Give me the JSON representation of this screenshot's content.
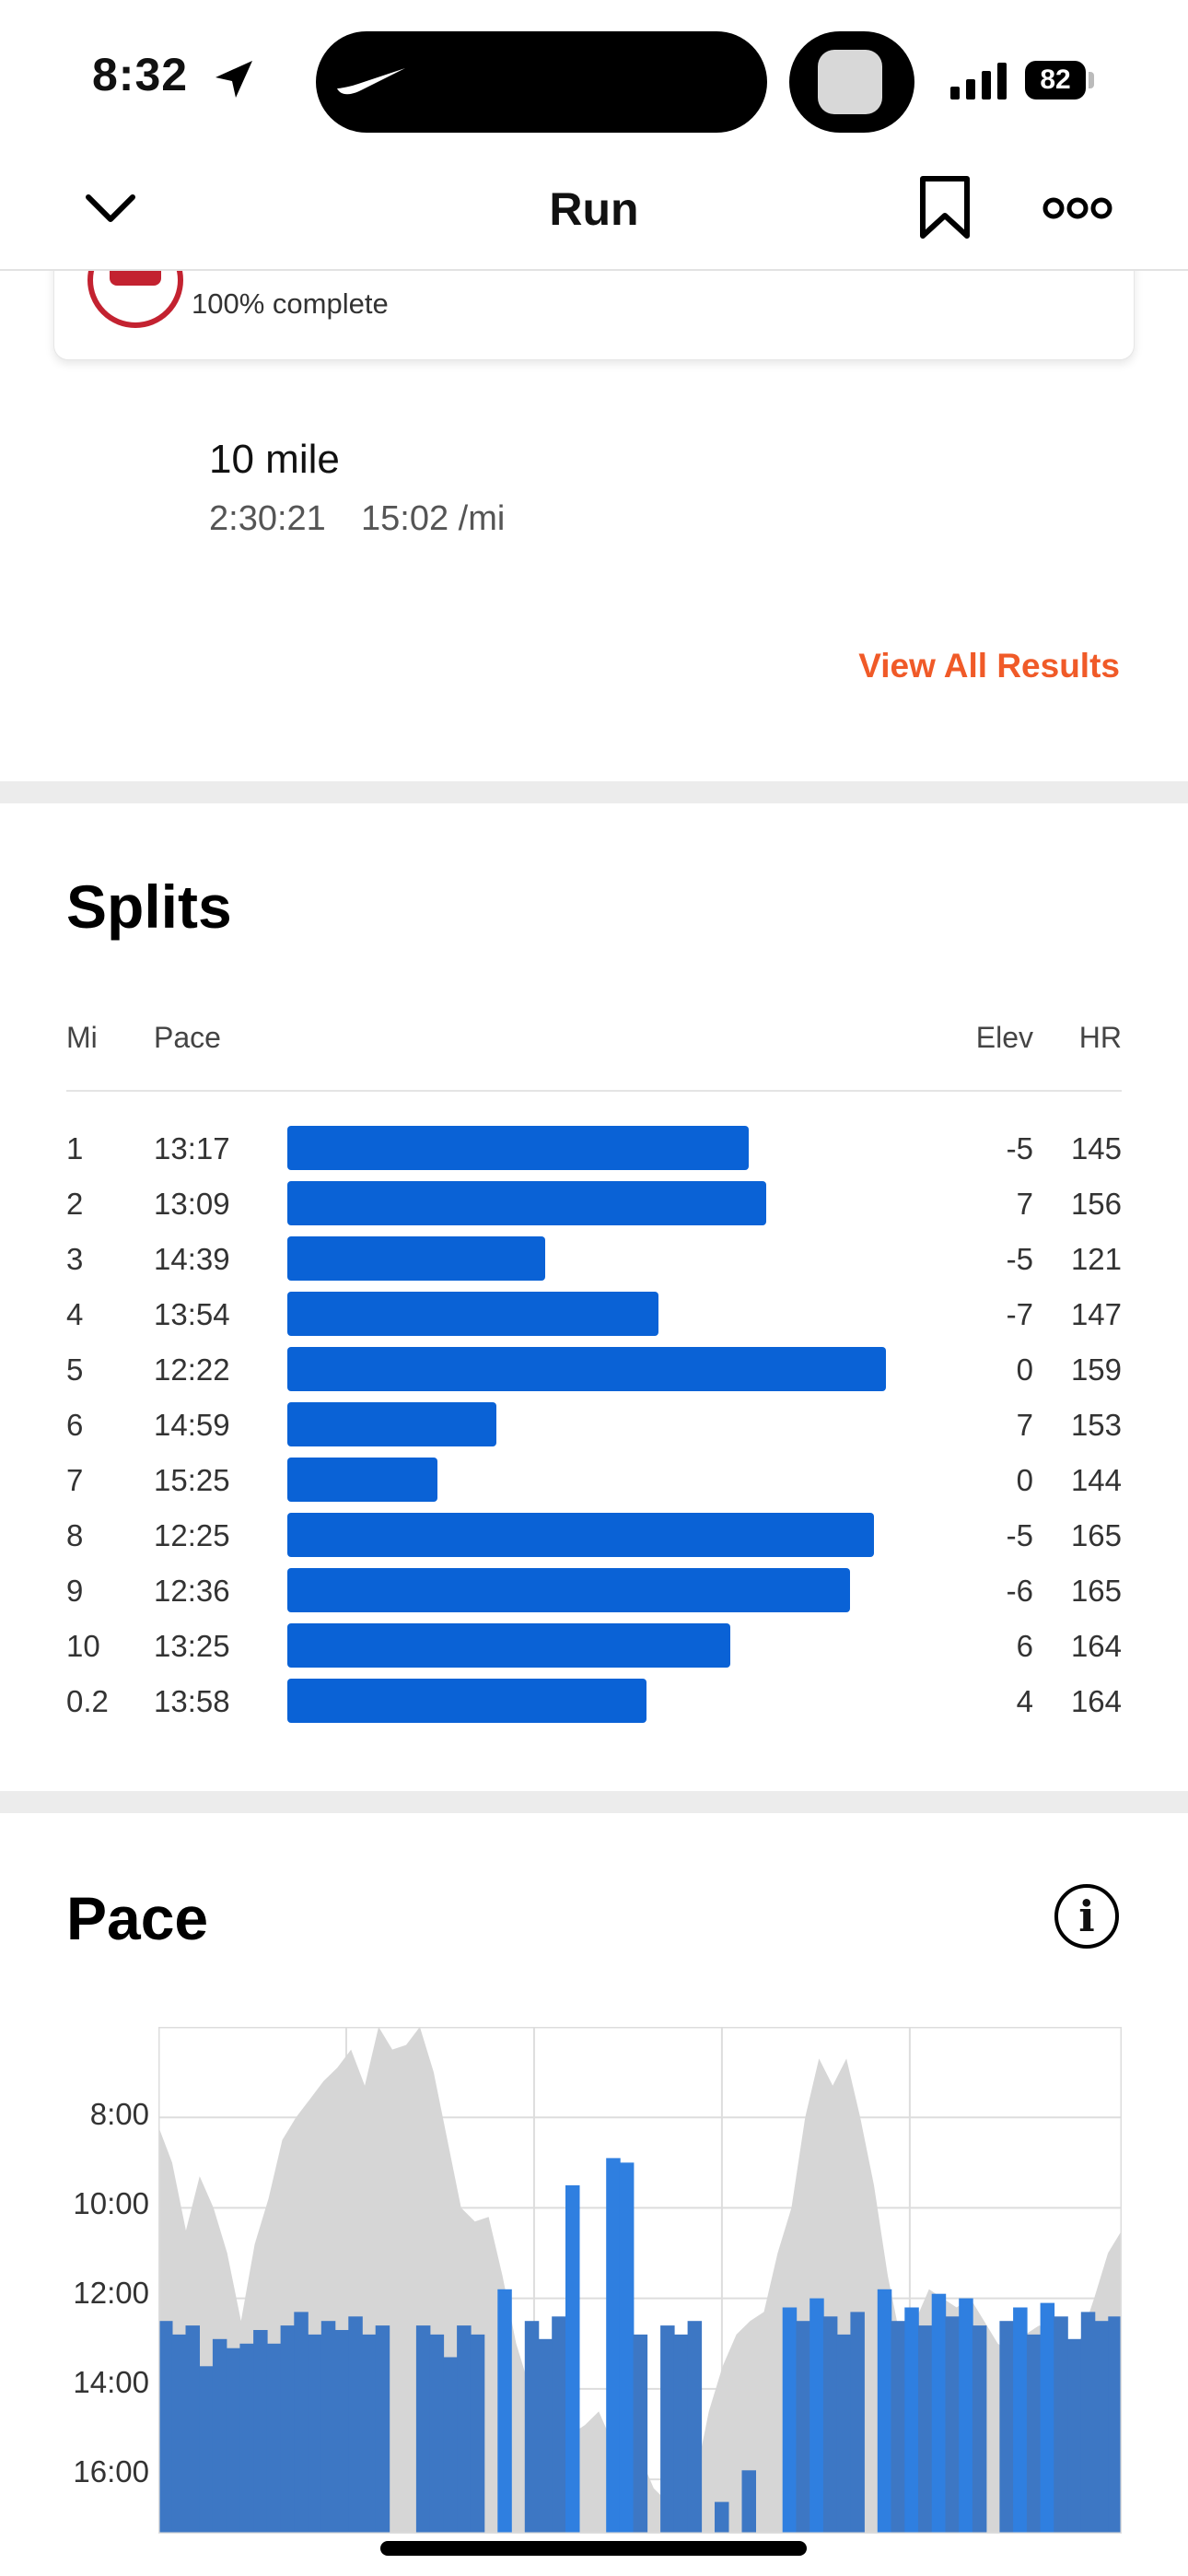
{
  "status_bar": {
    "time": "8:32",
    "battery": "82"
  },
  "nav": {
    "title": "Run"
  },
  "challenge": {
    "progress_text": "100% complete"
  },
  "result": {
    "name": "10 mile",
    "time": "2:30:21",
    "pace": "15:02 /mi"
  },
  "view_all_label": "View All Results",
  "splits": {
    "title": "Splits",
    "headers": {
      "mi": "Mi",
      "pace": "Pace",
      "elev": "Elev",
      "hr": "HR"
    },
    "rows": [
      {
        "mi": "1",
        "pace": "13:17",
        "elev": "-5",
        "hr": "145",
        "bar": 0.77
      },
      {
        "mi": "2",
        "pace": "13:09",
        "elev": "7",
        "hr": "156",
        "bar": 0.8
      },
      {
        "mi": "3",
        "pace": "14:39",
        "elev": "-5",
        "hr": "121",
        "bar": 0.43
      },
      {
        "mi": "4",
        "pace": "13:54",
        "elev": "-7",
        "hr": "147",
        "bar": 0.62
      },
      {
        "mi": "5",
        "pace": "12:22",
        "elev": "0",
        "hr": "159",
        "bar": 1.0
      },
      {
        "mi": "6",
        "pace": "14:59",
        "elev": "7",
        "hr": "153",
        "bar": 0.35
      },
      {
        "mi": "7",
        "pace": "15:25",
        "elev": "0",
        "hr": "144",
        "bar": 0.25
      },
      {
        "mi": "8",
        "pace": "12:25",
        "elev": "-5",
        "hr": "165",
        "bar": 0.98
      },
      {
        "mi": "9",
        "pace": "12:36",
        "elev": "-6",
        "hr": "165",
        "bar": 0.94
      },
      {
        "mi": "10",
        "pace": "13:25",
        "elev": "6",
        "hr": "164",
        "bar": 0.74
      },
      {
        "mi": "0.2",
        "pace": "13:58",
        "elev": "4",
        "hr": "164",
        "bar": 0.6
      }
    ]
  },
  "pace": {
    "title": "Pace"
  },
  "chart_data": {
    "type": "area",
    "title": "Pace",
    "y_ticks": [
      "8:00",
      "10:00",
      "12:00",
      "14:00",
      "16:00"
    ],
    "ylim_minutes": [
      6.0,
      17.2
    ],
    "y_inverted": true,
    "colors": {
      "elevation": "#d6d6d6",
      "pace_dark": "#3d77c4",
      "pace_light": "#2f7fe0",
      "grid": "#dddddd"
    },
    "series": [
      {
        "values_minutes": [
          8.2,
          9.0,
          10.5,
          9.3,
          10.0,
          11.0,
          12.5,
          10.8,
          9.8,
          8.5,
          8.0,
          7.6,
          7.2,
          6.9,
          6.5,
          7.3,
          6.0,
          6.5,
          6.4,
          6.0,
          7.0,
          8.5,
          10.0,
          10.3,
          10.2,
          11.5,
          13.0,
          14.0,
          13.5,
          14.7,
          15.0,
          14.8,
          14.5,
          15.2,
          15.0,
          15.5,
          16.2,
          16.5,
          17.2,
          16.0,
          14.5,
          13.5,
          12.8,
          12.5,
          12.3,
          11.0,
          10.0,
          8.0,
          6.7,
          7.3,
          6.7,
          8.0,
          9.5,
          11.5,
          13.0,
          12.5,
          11.8,
          12.0,
          12.2,
          12.0,
          12.5,
          13.0,
          13.2,
          12.8,
          12.6,
          12.7,
          13.0,
          12.9,
          12.0,
          11.0,
          10.5
        ]
      },
      {
        "values_minutes": [
          12.5,
          12.8,
          12.6,
          13.5,
          12.9,
          13.1,
          13.0,
          12.7,
          13.0,
          12.6,
          12.3,
          12.8,
          12.5,
          12.7,
          12.4,
          12.8,
          12.6,
          17.2,
          17.2,
          12.6,
          12.8,
          13.3,
          12.6,
          12.8,
          17.2,
          11.8,
          17.2,
          12.5,
          12.9,
          12.4,
          9.5,
          17.2,
          17.2,
          8.9,
          9.0,
          12.8,
          17.2,
          12.6,
          12.8,
          12.5,
          17.2,
          16.5,
          17.2,
          15.8,
          17.2,
          17.2,
          12.2,
          12.5,
          12.0,
          12.4,
          12.8,
          12.3,
          17.2,
          11.8,
          12.5,
          12.2,
          12.6,
          11.9,
          12.4,
          12.0,
          12.6,
          17.2,
          12.5,
          12.2,
          12.8,
          12.1,
          12.4,
          12.9,
          12.3,
          12.5,
          12.4
        ]
      }
    ]
  }
}
